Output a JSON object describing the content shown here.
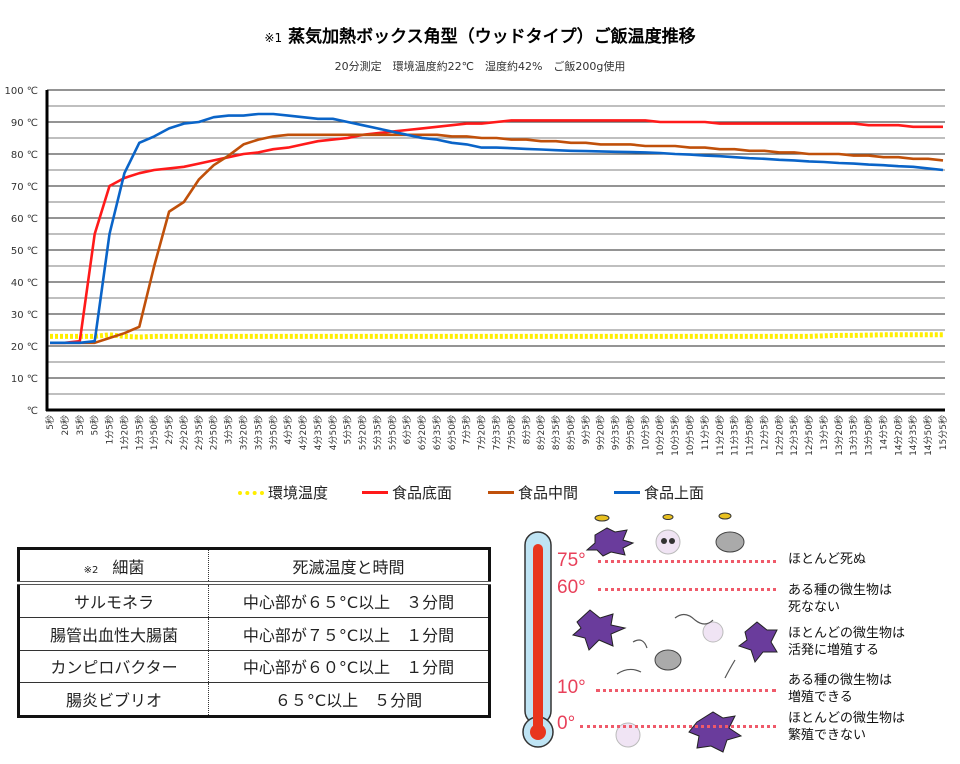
{
  "chart_data": {
    "type": "line",
    "title_mark": "※1",
    "title": "蒸気加熱ボックス角型（ウッドタイプ）ご飯温度推移",
    "subtitle": "20分測定　環境温度約22℃　湿度約42%　ご飯200g使用",
    "ylim": [
      0,
      100
    ],
    "y_ticks": [
      "℃",
      "10 ℃",
      "20 ℃",
      "30 ℃",
      "40 ℃",
      "50 ℃",
      "60 ℃",
      "70 ℃",
      "80 ℃",
      "90 ℃",
      "100 ℃"
    ],
    "grid": true,
    "legend_position": "bottom",
    "x": [
      "5秒",
      "20秒",
      "35秒",
      "50秒",
      "1分5秒",
      "1分20秒",
      "1分35秒",
      "1分50秒",
      "2分5秒",
      "2分20秒",
      "2分35秒",
      "2分50秒",
      "3分5秒",
      "3分20秒",
      "3分35秒",
      "3分50秒",
      "4分5秒",
      "4分20秒",
      "4分35秒",
      "4分50秒",
      "5分5秒",
      "5分20秒",
      "5分35秒",
      "5分50秒",
      "6分5秒",
      "6分20秒",
      "6分35秒",
      "6分50秒",
      "7分5秒",
      "7分20秒",
      "7分35秒",
      "7分50秒",
      "8分5秒",
      "8分20秒",
      "8分35秒",
      "8分50秒",
      "9分5秒",
      "9分20秒",
      "9分35秒",
      "9分50秒",
      "10分5秒",
      "10分20秒",
      "10分35秒",
      "10分50秒",
      "11分5秒",
      "11分20秒",
      "11分35秒",
      "11分50秒",
      "12分5秒",
      "12分20秒",
      "12分35秒",
      "12分50秒",
      "13分5秒",
      "13分20秒",
      "13分35秒",
      "13分50秒",
      "14分5秒",
      "14分20秒",
      "14分35秒",
      "14分50秒",
      "15分5秒"
    ],
    "series": [
      {
        "name": "環境温度",
        "color": "#ffee00",
        "dotted": true,
        "values": [
          23,
          23,
          23,
          23,
          23.5,
          23,
          22.8,
          23,
          23,
          23,
          23,
          23,
          23,
          23,
          23,
          23,
          23,
          23,
          23,
          23,
          23,
          23,
          23,
          23,
          23,
          23,
          23,
          23,
          23,
          23,
          23,
          23,
          23,
          23,
          23,
          23,
          23,
          23,
          23,
          23,
          23,
          23,
          23,
          23,
          23,
          23,
          23,
          23,
          23,
          23,
          23,
          23,
          23.2,
          23.3,
          23.3,
          23.4,
          23.5,
          23.5,
          23.5,
          23.5,
          23.5
        ]
      },
      {
        "name": "食品底面",
        "color": "#ff1a1a",
        "values": [
          21,
          21,
          21.5,
          55,
          70,
          72.5,
          74,
          75,
          75.5,
          76,
          77,
          78,
          79,
          80,
          80.5,
          81.5,
          82,
          83,
          84,
          84.5,
          85,
          86,
          86.5,
          87,
          87.5,
          88,
          88.5,
          89,
          89.5,
          89.5,
          90,
          90.5,
          90.5,
          90.5,
          90.5,
          90.5,
          90.5,
          90.5,
          90.5,
          90.5,
          90.5,
          90,
          90,
          90,
          90,
          89.5,
          89.5,
          89.5,
          89.5,
          89.5,
          89.5,
          89.5,
          89.5,
          89.5,
          89.5,
          89,
          89,
          89,
          88.5,
          88.5,
          88.5
        ]
      },
      {
        "name": "食品中間",
        "color": "#c0500a",
        "values": [
          21,
          21,
          21,
          21,
          22.5,
          24,
          26,
          45,
          62,
          65,
          72,
          76.5,
          79.5,
          83,
          84.5,
          85.5,
          86,
          86,
          86,
          86,
          86,
          86,
          86,
          86,
          86,
          86,
          86,
          85.5,
          85.5,
          85,
          85,
          84.5,
          84.5,
          84,
          84,
          83.5,
          83.5,
          83,
          83,
          83,
          82.5,
          82.5,
          82.5,
          82,
          82,
          81.5,
          81.5,
          81,
          81,
          80.5,
          80.5,
          80,
          80,
          80,
          79.5,
          79.5,
          79,
          79,
          78.5,
          78.5,
          78
        ]
      },
      {
        "name": "食品上面",
        "color": "#0a64c8",
        "values": [
          21,
          21,
          21,
          21.5,
          55,
          74,
          83.5,
          85.5,
          88,
          89.5,
          90,
          91.5,
          92,
          92,
          92.5,
          92.5,
          92,
          91.5,
          91,
          91,
          90,
          89,
          88,
          87,
          86,
          85,
          84.5,
          83.5,
          83,
          82,
          82,
          81.8,
          81.6,
          81.4,
          81.2,
          81,
          80.9,
          80.8,
          80.7,
          80.6,
          80.5,
          80.3,
          80,
          79.8,
          79.5,
          79.3,
          79,
          78.7,
          78.5,
          78.2,
          78,
          77.7,
          77.5,
          77.2,
          77,
          76.7,
          76.5,
          76.2,
          76,
          75.5,
          75
        ]
      }
    ]
  },
  "table": {
    "note": "※2",
    "header": [
      "細菌",
      "死滅温度と時間"
    ],
    "rows": [
      [
        "サルモネラ",
        "中心部が６５°C以上　３分間"
      ],
      [
        "腸管出血性大腸菌",
        "中心部が７５°C以上　１分間"
      ],
      [
        "カンピロバクター",
        "中心部が６０°C以上　１分間"
      ],
      [
        "腸炎ビブリオ",
        "６５°C以上　５分間"
      ]
    ]
  },
  "thermometer": {
    "levels": [
      {
        "label": "75°",
        "text": [
          "ほとんど死ぬ"
        ]
      },
      {
        "label": "60°",
        "text": [
          "ある種の微生物は",
          "死なない"
        ]
      },
      {
        "label": "",
        "text": [
          "ほとんどの微生物は",
          "活発に増殖する"
        ]
      },
      {
        "label": "10°",
        "text": [
          "ある種の微生物は",
          "増殖できる"
        ]
      },
      {
        "label": "0°",
        "text": [
          "ほとんどの微生物は",
          "繁殖できない"
        ]
      }
    ],
    "accent": "#e8405a"
  }
}
